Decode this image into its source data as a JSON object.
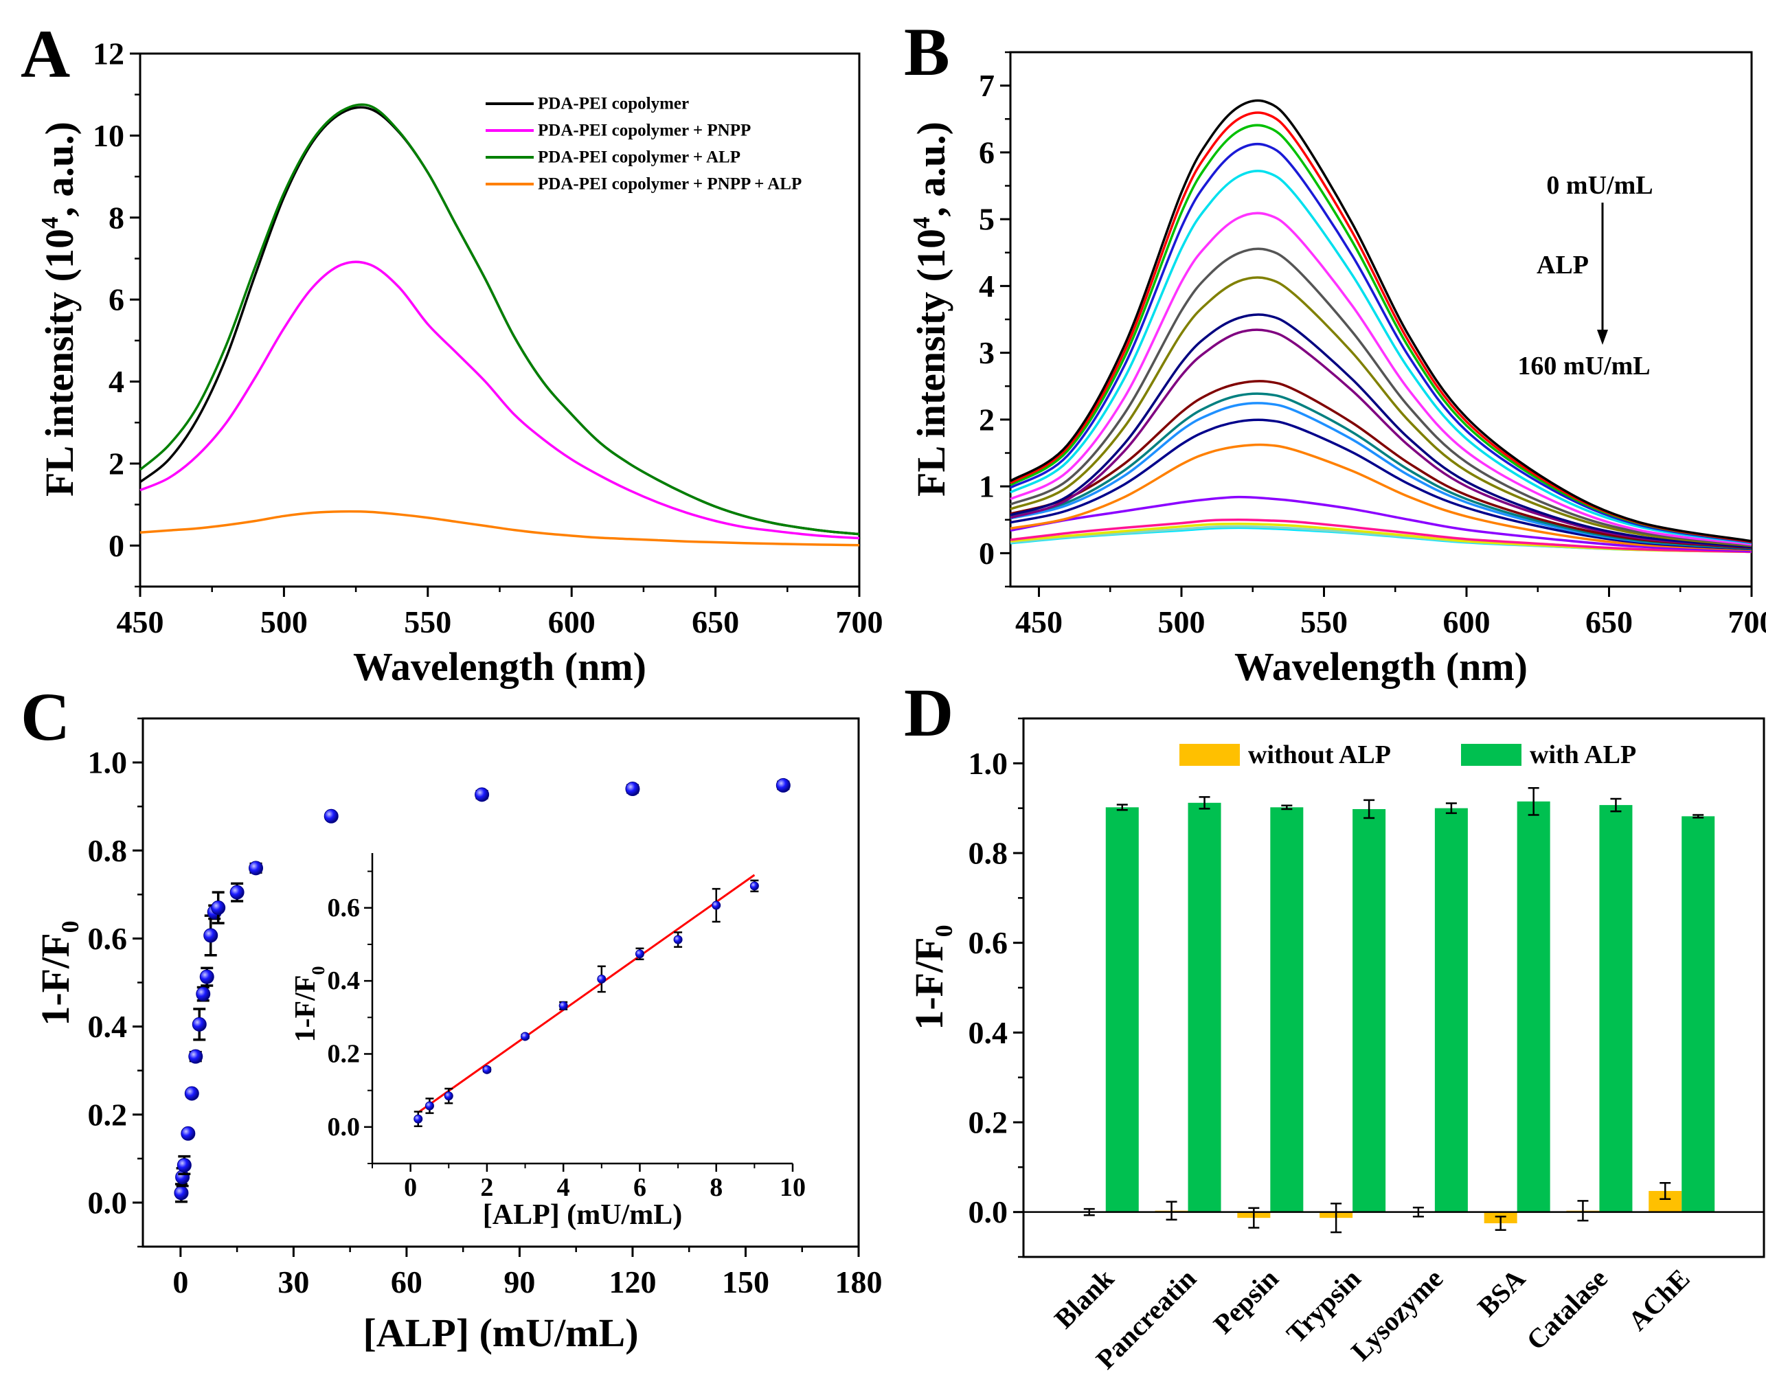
{
  "chart_data": [
    {
      "panel": "A",
      "type": "line",
      "xlabel": "Wavelength (nm)",
      "ylabel_prefix": "FL intensity (10",
      "ylabel_sup": "4",
      "ylabel_suffix": ", a.u.)",
      "xlim": [
        450,
        700
      ],
      "ylim": [
        -1,
        12
      ],
      "xticks": [
        "450",
        "500",
        "550",
        "600",
        "650",
        "700"
      ],
      "yticks": [
        "0",
        "2",
        "4",
        "6",
        "8",
        "10",
        "12"
      ],
      "legend": "top-right",
      "grid": false,
      "x": [
        450,
        460,
        470,
        480,
        490,
        500,
        510,
        520,
        530,
        540,
        550,
        560,
        570,
        580,
        590,
        600,
        610,
        620,
        630,
        640,
        650,
        660,
        670,
        680,
        690,
        700
      ],
      "series": [
        {
          "name": "PDA-PEI copolymer",
          "color": "#000000",
          "values": [
            1.55,
            2.1,
            3.1,
            4.6,
            6.6,
            8.5,
            9.85,
            10.55,
            10.65,
            10.08,
            9.1,
            7.8,
            6.5,
            5.1,
            4.0,
            3.2,
            2.5,
            2.0,
            1.6,
            1.25,
            0.95,
            0.72,
            0.55,
            0.43,
            0.34,
            0.28
          ]
        },
        {
          "name": "PDA-PEI copolymer + PNPP",
          "color": "#ff00ff",
          "values": [
            1.35,
            1.65,
            2.2,
            3.0,
            4.1,
            5.3,
            6.3,
            6.85,
            6.85,
            6.3,
            5.4,
            4.7,
            4.0,
            3.2,
            2.6,
            2.1,
            1.7,
            1.35,
            1.05,
            0.8,
            0.6,
            0.45,
            0.36,
            0.28,
            0.22,
            0.18
          ]
        },
        {
          "name": "PDA-PEI copolymer + ALP",
          "color": "#008000",
          "values": [
            1.85,
            2.45,
            3.4,
            4.9,
            6.8,
            8.6,
            9.9,
            10.6,
            10.72,
            10.1,
            9.1,
            7.8,
            6.5,
            5.1,
            4.0,
            3.2,
            2.5,
            2.0,
            1.6,
            1.25,
            0.95,
            0.72,
            0.55,
            0.43,
            0.34,
            0.28
          ]
        },
        {
          "name": "PDA-PEI copolymer + PNPP + ALP",
          "color": "#ff8000",
          "values": [
            0.32,
            0.37,
            0.42,
            0.5,
            0.6,
            0.72,
            0.8,
            0.83,
            0.82,
            0.76,
            0.68,
            0.58,
            0.48,
            0.38,
            0.3,
            0.24,
            0.19,
            0.16,
            0.13,
            0.1,
            0.08,
            0.06,
            0.045,
            0.03,
            0.02,
            0.01
          ]
        }
      ]
    },
    {
      "panel": "B",
      "type": "line",
      "xlabel": "Wavelength (nm)",
      "ylabel_prefix": "FL intensity (10",
      "ylabel_sup": "4",
      "ylabel_suffix": ", a.u.)",
      "xlim": [
        440,
        700
      ],
      "ylim": [
        -0.5,
        7.5
      ],
      "xticks": [
        "450",
        "500",
        "550",
        "600",
        "650",
        "700"
      ],
      "yticks": [
        "0",
        "1",
        "2",
        "3",
        "4",
        "5",
        "6",
        "7"
      ],
      "grid": false,
      "annotations": [
        "0 mU/mL",
        "ALP",
        "160 mU/mL"
      ],
      "x": [
        440,
        460,
        480,
        500,
        510,
        520,
        530,
        540,
        560,
        580,
        600,
        630,
        660,
        700
      ],
      "series": [
        {
          "color": "#000000",
          "values": [
            1.08,
            1.62,
            3.11,
            5.4,
            6.21,
            6.68,
            6.75,
            6.35,
            4.93,
            3.24,
            2.03,
            1.05,
            0.47,
            0.18
          ]
        },
        {
          "color": "#ff0000",
          "values": [
            1.05,
            1.58,
            3.02,
            5.26,
            6.04,
            6.5,
            6.57,
            6.18,
            4.8,
            3.15,
            1.97,
            1.02,
            0.46,
            0.17
          ]
        },
        {
          "color": "#00c000",
          "values": [
            1.02,
            1.53,
            2.93,
            5.1,
            5.87,
            6.32,
            6.38,
            6.0,
            4.66,
            3.06,
            1.91,
            0.99,
            0.45,
            0.17
          ]
        },
        {
          "color": "#1a1ad6",
          "values": [
            0.98,
            1.46,
            2.81,
            4.88,
            5.61,
            6.04,
            6.1,
            5.73,
            4.45,
            2.93,
            1.83,
            0.95,
            0.43,
            0.16
          ]
        },
        {
          "color": "#00e0ee",
          "values": [
            0.91,
            1.37,
            2.62,
            4.56,
            5.24,
            5.64,
            5.7,
            5.36,
            4.16,
            2.74,
            1.71,
            0.88,
            0.4,
            0.15
          ]
        },
        {
          "color": "#ff33ff",
          "values": [
            0.81,
            1.22,
            2.33,
            4.06,
            4.66,
            5.02,
            5.07,
            4.77,
            3.7,
            2.43,
            1.52,
            0.79,
            0.35,
            0.13
          ]
        },
        {
          "color": "#555555",
          "values": [
            0.73,
            1.09,
            2.09,
            3.63,
            4.18,
            4.49,
            4.54,
            4.27,
            3.31,
            2.18,
            1.36,
            0.7,
            0.32,
            0.12
          ]
        },
        {
          "color": "#808000",
          "values": [
            0.66,
            0.99,
            1.89,
            3.29,
            3.78,
            4.07,
            4.11,
            3.86,
            3.0,
            1.97,
            1.23,
            0.64,
            0.29,
            0.11
          ]
        },
        {
          "color": "#000080",
          "values": [
            0.57,
            0.85,
            1.64,
            2.85,
            3.28,
            3.52,
            3.56,
            3.35,
            2.6,
            1.71,
            1.07,
            0.55,
            0.25,
            0.09
          ]
        },
        {
          "color": "#800080",
          "values": [
            0.53,
            0.8,
            1.53,
            2.66,
            3.06,
            3.3,
            3.33,
            3.13,
            2.43,
            1.6,
            1.0,
            0.52,
            0.23,
            0.09
          ]
        },
        {
          "color": "#800000",
          "values": [
            0.59,
            0.82,
            1.34,
            2.11,
            2.39,
            2.54,
            2.57,
            2.44,
            1.95,
            1.34,
            0.87,
            0.46,
            0.21,
            0.08
          ]
        },
        {
          "color": "#008080",
          "values": [
            0.55,
            0.76,
            1.24,
            1.95,
            2.21,
            2.36,
            2.38,
            2.26,
            1.81,
            1.24,
            0.81,
            0.43,
            0.19,
            0.07
          ]
        },
        {
          "color": "#1e90ff",
          "values": [
            0.52,
            0.72,
            1.16,
            1.84,
            2.08,
            2.22,
            2.24,
            2.13,
            1.7,
            1.16,
            0.76,
            0.4,
            0.18,
            0.07
          ]
        },
        {
          "color": "#00008b",
          "values": [
            0.46,
            0.64,
            1.03,
            1.63,
            1.85,
            1.97,
            1.99,
            1.89,
            1.51,
            1.03,
            0.68,
            0.36,
            0.16,
            0.06
          ]
        },
        {
          "color": "#ff8000",
          "values": [
            0.37,
            0.52,
            0.84,
            1.33,
            1.51,
            1.6,
            1.62,
            1.54,
            1.23,
            0.84,
            0.55,
            0.29,
            0.13,
            0.05
          ]
        },
        {
          "color": "#8b00ff",
          "values": [
            0.34,
            0.5,
            0.63,
            0.76,
            0.81,
            0.84,
            0.82,
            0.78,
            0.66,
            0.5,
            0.35,
            0.21,
            0.1,
            0.03
          ]
        },
        {
          "color": "#ff1493",
          "values": [
            0.2,
            0.3,
            0.38,
            0.45,
            0.49,
            0.5,
            0.49,
            0.47,
            0.39,
            0.3,
            0.21,
            0.13,
            0.06,
            0.02
          ]
        },
        {
          "color": "#e5e500",
          "values": [
            0.18,
            0.26,
            0.33,
            0.4,
            0.43,
            0.44,
            0.43,
            0.41,
            0.34,
            0.26,
            0.18,
            0.11,
            0.05,
            0.02
          ]
        },
        {
          "color": "#7fd8c8",
          "values": [
            0.16,
            0.24,
            0.3,
            0.36,
            0.39,
            0.4,
            0.39,
            0.37,
            0.31,
            0.24,
            0.17,
            0.1,
            0.05,
            0.02
          ]
        },
        {
          "color": "#00e5ff",
          "values": [
            0.15,
            0.23,
            0.29,
            0.34,
            0.37,
            0.38,
            0.37,
            0.35,
            0.3,
            0.23,
            0.16,
            0.1,
            0.05,
            0.02
          ]
        }
      ]
    },
    {
      "panel": "C",
      "type": "scatter",
      "xlabel": "[ALP] (mU/mL)",
      "ylabel_prefix": "1-F/F",
      "ylabel_sub": "0",
      "xlim": [
        -10,
        180
      ],
      "ylim": [
        -0.1,
        1.1
      ],
      "xticks": [
        "0",
        "30",
        "60",
        "90",
        "120",
        "150",
        "180"
      ],
      "yticks": [
        "0.0",
        "0.2",
        "0.4",
        "0.6",
        "0.8",
        "1.0"
      ],
      "marker_color": "#1a1aff",
      "x": [
        0.2,
        0.5,
        1,
        2,
        3,
        4,
        5,
        6,
        7,
        8,
        9,
        10,
        15,
        20,
        40,
        80,
        120,
        160
      ],
      "y": [
        0.022,
        0.058,
        0.085,
        0.157,
        0.248,
        0.332,
        0.405,
        0.474,
        0.513,
        0.607,
        0.66,
        0.67,
        0.705,
        0.76,
        0.878,
        0.927,
        0.94,
        0.948
      ],
      "err": [
        0.02,
        0.02,
        0.02,
        0.006,
        0.006,
        0.01,
        0.035,
        0.015,
        0.02,
        0.045,
        0.015,
        0.035,
        0.02,
        0.01,
        0.006,
        0.008,
        0.008,
        0.008
      ],
      "inset": {
        "xlabel": "[ALP] (mU/mL)",
        "ylabel_prefix": "1-F/F",
        "ylabel_sub": "0",
        "xlim": [
          -1,
          10
        ],
        "ylim": [
          -0.1,
          0.75
        ],
        "xticks": [
          "0",
          "2",
          "4",
          "6",
          "8",
          "10"
        ],
        "yticks": [
          "0.0",
          "0.2",
          "0.4",
          "0.6"
        ],
        "x": [
          0.2,
          0.5,
          1,
          2,
          3,
          4,
          5,
          6,
          7,
          8,
          9
        ],
        "y": [
          0.022,
          0.058,
          0.085,
          0.157,
          0.248,
          0.332,
          0.405,
          0.474,
          0.513,
          0.607,
          0.66
        ],
        "err": [
          0.02,
          0.02,
          0.02,
          0.005,
          0.005,
          0.01,
          0.035,
          0.015,
          0.02,
          0.045,
          0.015
        ],
        "fit": {
          "type": "linear",
          "slope": 0.0739,
          "intercept": 0.025,
          "x_range": [
            0.2,
            9
          ],
          "color": "#ff0000"
        }
      }
    },
    {
      "panel": "D",
      "type": "bar",
      "ylabel_prefix": "1-F/F",
      "ylabel_sub": "0",
      "ylim": [
        -0.1,
        1.1
      ],
      "yticks": [
        "0.0",
        "0.2",
        "0.4",
        "0.6",
        "0.8",
        "1.0"
      ],
      "legend": "top",
      "categories": [
        "Blank",
        "Pancreatin",
        "Pepsin",
        "Trypsin",
        "Lysozyme",
        "BSA",
        "Catalase",
        "AChE"
      ],
      "series": [
        {
          "name": "without ALP",
          "color": "#ffc000",
          "values": [
            0.0,
            0.003,
            -0.013,
            -0.013,
            0.0,
            -0.025,
            0.003,
            0.047
          ],
          "errors": [
            0.007,
            0.02,
            0.022,
            0.032,
            0.01,
            0.015,
            0.022,
            0.018
          ]
        },
        {
          "name": "with ALP",
          "color": "#00c050",
          "values": [
            0.902,
            0.912,
            0.902,
            0.898,
            0.9,
            0.915,
            0.907,
            0.882
          ],
          "errors": [
            0.006,
            0.013,
            0.004,
            0.02,
            0.011,
            0.03,
            0.014,
            0.003
          ]
        }
      ]
    }
  ]
}
